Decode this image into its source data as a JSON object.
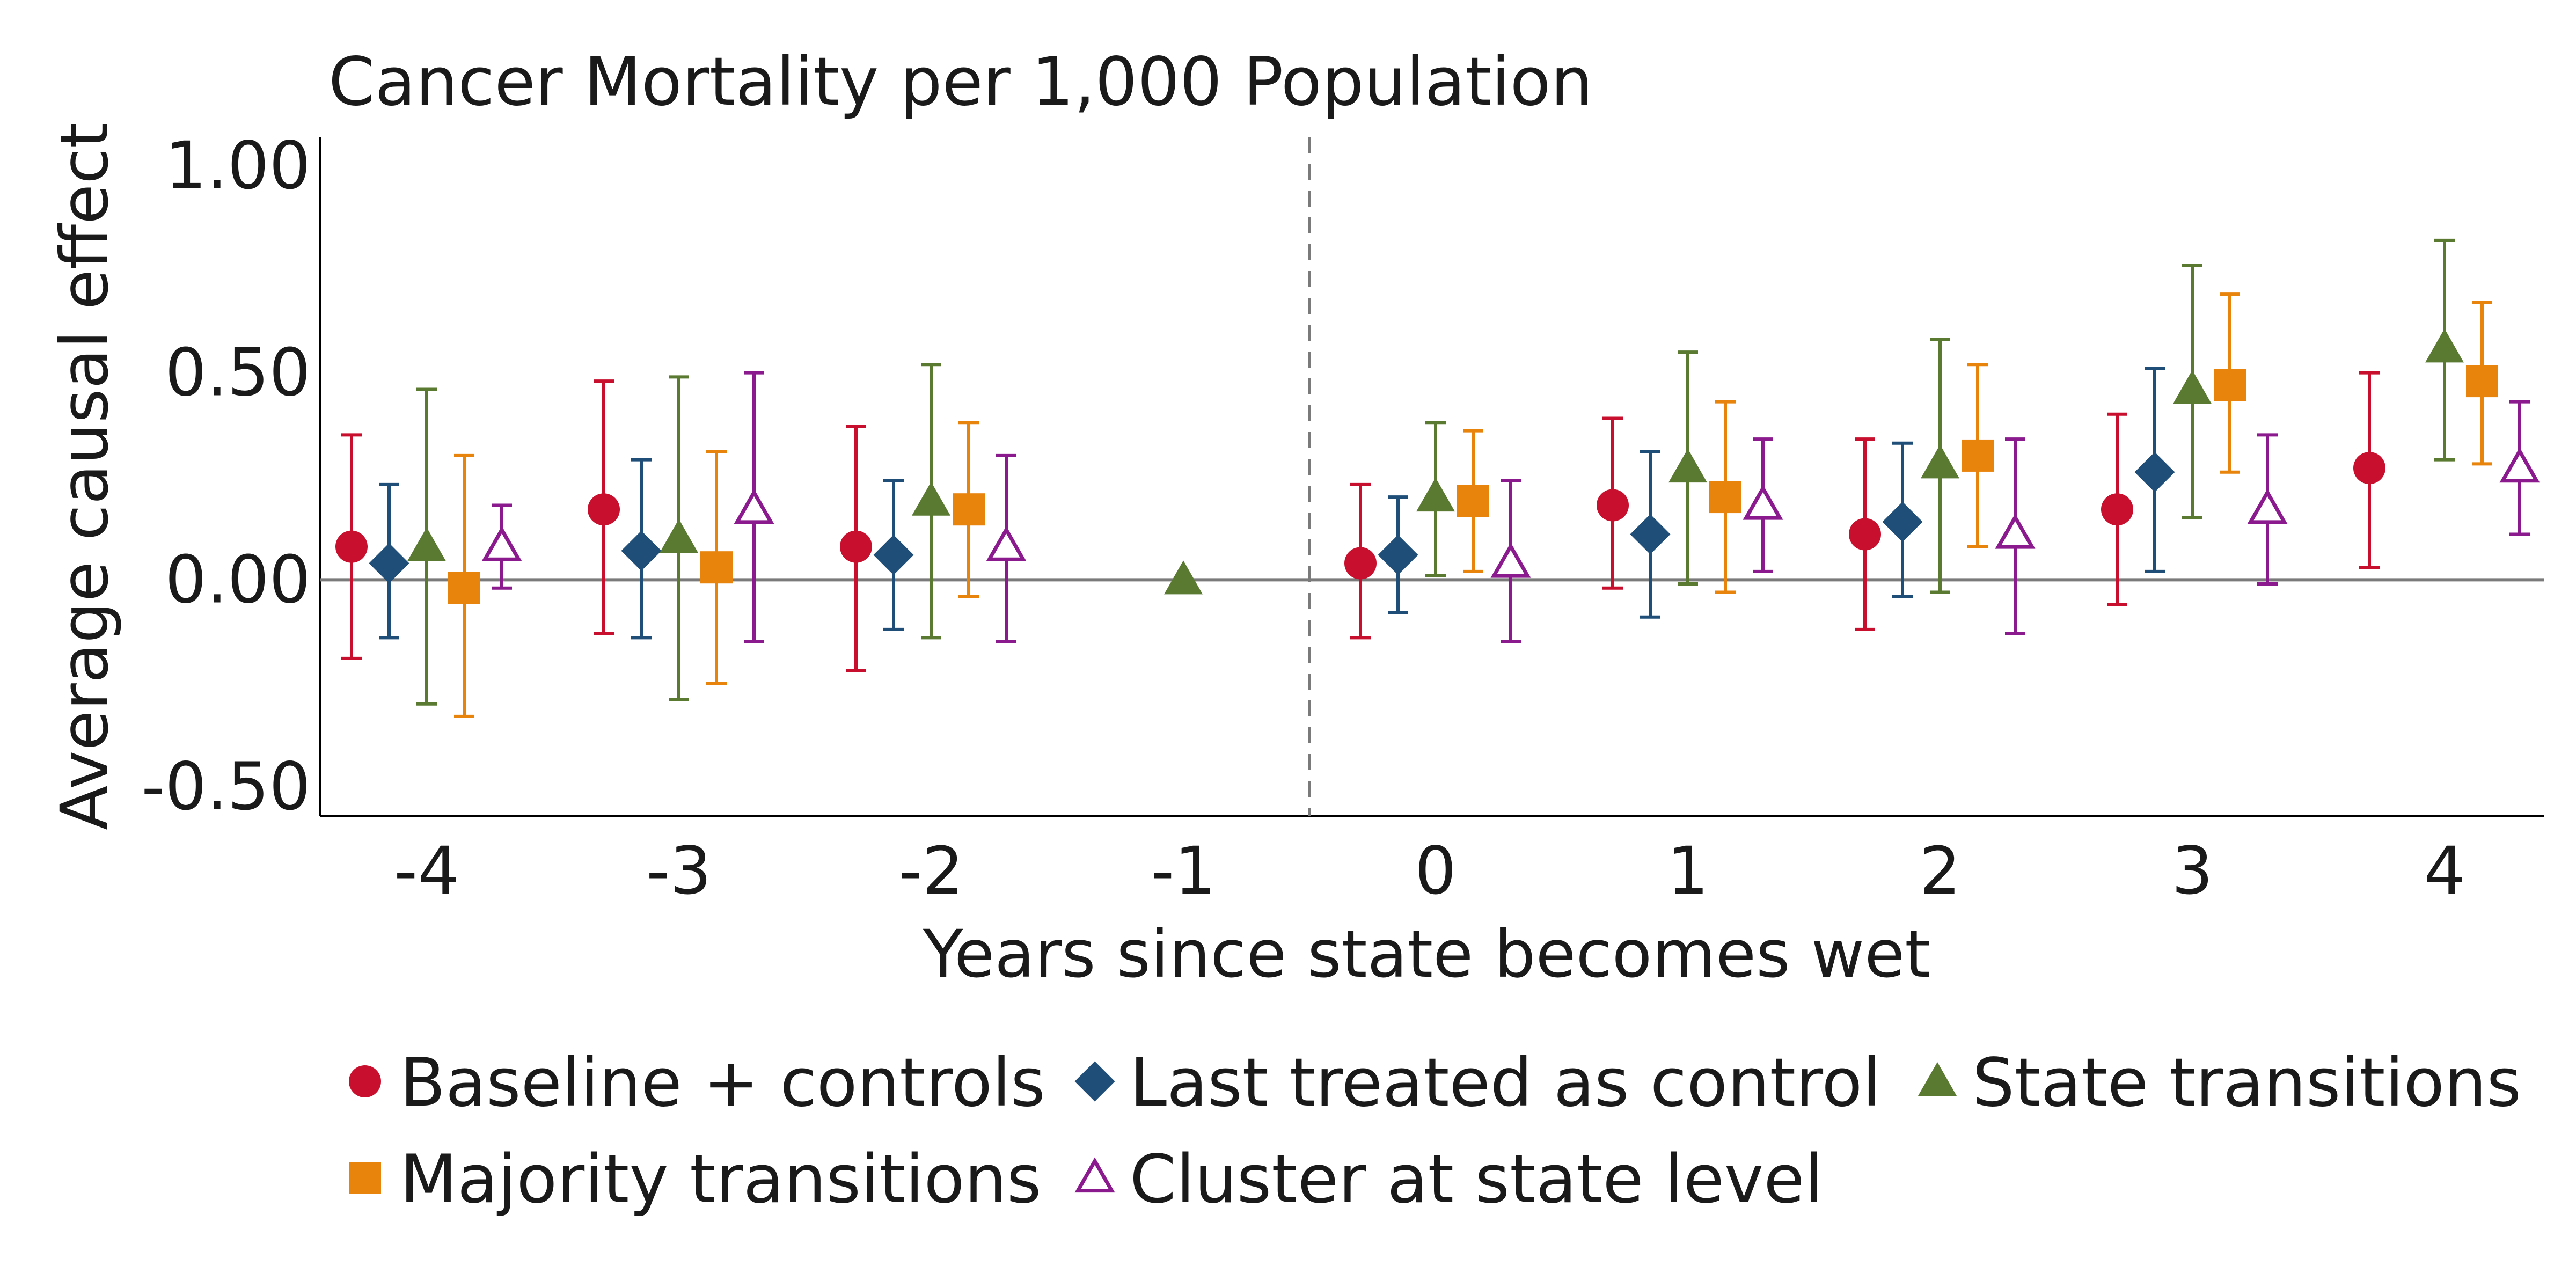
{
  "chart_data": {
    "type": "scatter",
    "title": "Cancer Mortality per 1,000 Population",
    "xlabel": "Years since state becomes wet",
    "ylabel": "Average causal effect",
    "x_ticks": [
      "-4",
      "-3",
      "-2",
      "-1",
      "0",
      "1",
      "2",
      "3",
      "4"
    ],
    "y_ticks": [
      "1.00",
      "0.50",
      "0.00",
      "-0.50"
    ],
    "ylim": [
      -0.57,
      1.07
    ],
    "zero_line": true,
    "treatment_line": {
      "after_tick": "-1"
    },
    "legend_position": "bottom",
    "series": [
      {
        "name": "Baseline + controls",
        "color": "#c8102e",
        "marker": "circle-filled",
        "points": [
          {
            "x": "-4",
            "y": 0.08,
            "lo": -0.19,
            "hi": 0.35
          },
          {
            "x": "-3",
            "y": 0.17,
            "lo": -0.13,
            "hi": 0.48
          },
          {
            "x": "-2",
            "y": 0.08,
            "lo": -0.22,
            "hi": 0.37
          },
          {
            "x": "0",
            "y": 0.04,
            "lo": -0.14,
            "hi": 0.23
          },
          {
            "x": "1",
            "y": 0.18,
            "lo": -0.02,
            "hi": 0.39
          },
          {
            "x": "2",
            "y": 0.11,
            "lo": -0.12,
            "hi": 0.34
          },
          {
            "x": "3",
            "y": 0.17,
            "lo": -0.06,
            "hi": 0.4
          },
          {
            "x": "4",
            "y": 0.27,
            "lo": 0.03,
            "hi": 0.5
          }
        ]
      },
      {
        "name": "Last treated as control",
        "color": "#1f4e79",
        "marker": "diamond-filled",
        "points": [
          {
            "x": "-4",
            "y": 0.04,
            "lo": -0.14,
            "hi": 0.23
          },
          {
            "x": "-3",
            "y": 0.07,
            "lo": -0.14,
            "hi": 0.29
          },
          {
            "x": "-2",
            "y": 0.06,
            "lo": -0.12,
            "hi": 0.24
          },
          {
            "x": "0",
            "y": 0.06,
            "lo": -0.08,
            "hi": 0.2
          },
          {
            "x": "1",
            "y": 0.11,
            "lo": -0.09,
            "hi": 0.31
          },
          {
            "x": "2",
            "y": 0.14,
            "lo": -0.04,
            "hi": 0.33
          },
          {
            "x": "3",
            "y": 0.26,
            "lo": 0.02,
            "hi": 0.51
          }
        ]
      },
      {
        "name": "State transitions",
        "color": "#5a7a31",
        "marker": "triangle-filled",
        "points": [
          {
            "x": "-4",
            "y": 0.08,
            "lo": -0.3,
            "hi": 0.46
          },
          {
            "x": "-3",
            "y": 0.1,
            "lo": -0.29,
            "hi": 0.49
          },
          {
            "x": "-2",
            "y": 0.19,
            "lo": -0.14,
            "hi": 0.52
          },
          {
            "x": "-1",
            "y": 0.0,
            "lo": 0.0,
            "hi": 0.0
          },
          {
            "x": "0",
            "y": 0.2,
            "lo": 0.01,
            "hi": 0.38
          },
          {
            "x": "1",
            "y": 0.27,
            "lo": -0.01,
            "hi": 0.55
          },
          {
            "x": "2",
            "y": 0.28,
            "lo": -0.03,
            "hi": 0.58
          },
          {
            "x": "3",
            "y": 0.46,
            "lo": 0.15,
            "hi": 0.76
          },
          {
            "x": "4",
            "y": 0.56,
            "lo": 0.29,
            "hi": 0.82
          }
        ]
      },
      {
        "name": "Majority transitions",
        "color": "#e8830c",
        "marker": "square-filled",
        "points": [
          {
            "x": "-4",
            "y": -0.02,
            "lo": -0.33,
            "hi": 0.3
          },
          {
            "x": "-3",
            "y": 0.03,
            "lo": -0.25,
            "hi": 0.31
          },
          {
            "x": "-2",
            "y": 0.17,
            "lo": -0.04,
            "hi": 0.38
          },
          {
            "x": "0",
            "y": 0.19,
            "lo": 0.02,
            "hi": 0.36
          },
          {
            "x": "1",
            "y": 0.2,
            "lo": -0.03,
            "hi": 0.43
          },
          {
            "x": "2",
            "y": 0.3,
            "lo": 0.08,
            "hi": 0.52
          },
          {
            "x": "3",
            "y": 0.47,
            "lo": 0.26,
            "hi": 0.69
          },
          {
            "x": "4",
            "y": 0.48,
            "lo": 0.28,
            "hi": 0.67
          }
        ]
      },
      {
        "name": "Cluster at state level",
        "color": "#8a1a8e",
        "marker": "triangle-open",
        "points": [
          {
            "x": "-4",
            "y": 0.08,
            "lo": -0.02,
            "hi": 0.18
          },
          {
            "x": "-3",
            "y": 0.17,
            "lo": -0.15,
            "hi": 0.5
          },
          {
            "x": "-2",
            "y": 0.08,
            "lo": -0.15,
            "hi": 0.3
          },
          {
            "x": "0",
            "y": 0.04,
            "lo": -0.15,
            "hi": 0.24
          },
          {
            "x": "1",
            "y": 0.18,
            "lo": 0.02,
            "hi": 0.34
          },
          {
            "x": "2",
            "y": 0.11,
            "lo": -0.13,
            "hi": 0.34
          },
          {
            "x": "3",
            "y": 0.17,
            "lo": -0.01,
            "hi": 0.35
          },
          {
            "x": "4",
            "y": 0.27,
            "lo": 0.11,
            "hi": 0.43
          }
        ]
      }
    ]
  }
}
